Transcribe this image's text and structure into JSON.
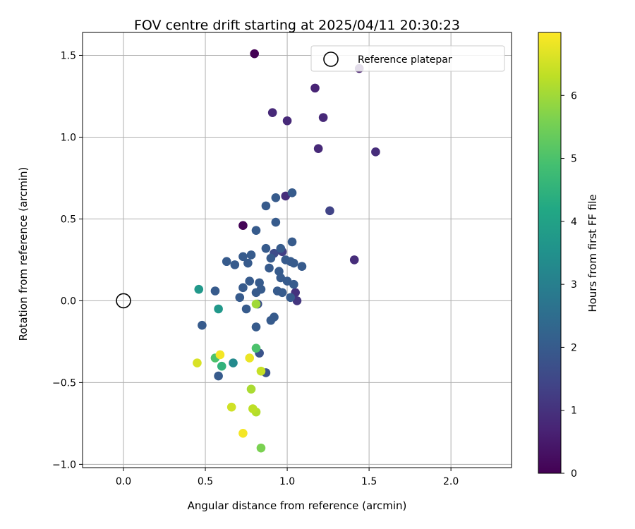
{
  "chart_data": {
    "type": "scatter",
    "title": "FOV centre drift starting at 2025/04/11 20:30:23",
    "xlabel": "Angular distance from reference (arcmin)",
    "ylabel": "Rotation from reference (arcmin)",
    "xlim": [
      -0.25,
      2.37
    ],
    "ylim": [
      -1.02,
      1.64
    ],
    "xticks": [
      "0.0",
      "0.5",
      "1.0",
      "1.5",
      "2.0"
    ],
    "xtick_values": [
      0.0,
      0.5,
      1.0,
      1.5,
      2.0
    ],
    "yticks": [
      "−1.0",
      "−0.5",
      "0.0",
      "0.5",
      "1.0",
      "1.5"
    ],
    "ytick_values": [
      -1.0,
      -0.5,
      0.0,
      0.5,
      1.0,
      1.5
    ],
    "grid": true,
    "legend": {
      "label": "Reference platepar",
      "placement": "top-right"
    },
    "reference_point": {
      "x": 0.0,
      "y": 0.0
    },
    "colorbar": {
      "label": "Hours from first FF file",
      "range": [
        0,
        7
      ],
      "ticks": [
        "0",
        "1",
        "2",
        "3",
        "4",
        "5",
        "6"
      ],
      "tick_values": [
        0,
        1,
        2,
        3,
        4,
        5,
        6
      ],
      "colormap": "viridis"
    },
    "series": [
      {
        "points": [
          {
            "x": 0.8,
            "y": 1.51,
            "c": 0.0
          },
          {
            "x": 0.73,
            "y": 0.46,
            "c": 0.05
          },
          {
            "x": 1.44,
            "y": 1.42,
            "c": 0.6
          },
          {
            "x": 1.17,
            "y": 1.3,
            "c": 0.7
          },
          {
            "x": 0.91,
            "y": 1.15,
            "c": 0.8
          },
          {
            "x": 1.0,
            "y": 1.1,
            "c": 0.8
          },
          {
            "x": 1.22,
            "y": 1.12,
            "c": 0.8
          },
          {
            "x": 1.19,
            "y": 0.93,
            "c": 0.8
          },
          {
            "x": 1.54,
            "y": 0.91,
            "c": 0.9
          },
          {
            "x": 0.99,
            "y": 0.64,
            "c": 0.9
          },
          {
            "x": 1.41,
            "y": 0.25,
            "c": 0.9
          },
          {
            "x": 1.05,
            "y": 0.05,
            "c": 1.0
          },
          {
            "x": 1.06,
            "y": 0.0,
            "c": 1.1
          },
          {
            "x": 1.26,
            "y": 0.55,
            "c": 1.4
          },
          {
            "x": 0.97,
            "y": 0.3,
            "c": 1.3
          },
          {
            "x": 0.92,
            "y": 0.29,
            "c": 1.6
          },
          {
            "x": 0.82,
            "y": -0.02,
            "c": 1.7
          },
          {
            "x": 0.87,
            "y": -0.44,
            "c": 1.8
          },
          {
            "x": 0.83,
            "y": -0.32,
            "c": 1.8
          },
          {
            "x": 1.03,
            "y": 0.66,
            "c": 2.0
          },
          {
            "x": 0.93,
            "y": 0.63,
            "c": 2.0
          },
          {
            "x": 0.87,
            "y": 0.58,
            "c": 2.0
          },
          {
            "x": 0.93,
            "y": 0.48,
            "c": 2.0
          },
          {
            "x": 0.81,
            "y": 0.43,
            "c": 2.0
          },
          {
            "x": 1.03,
            "y": 0.36,
            "c": 2.0
          },
          {
            "x": 0.87,
            "y": 0.32,
            "c": 2.0
          },
          {
            "x": 0.96,
            "y": 0.32,
            "c": 2.0
          },
          {
            "x": 0.78,
            "y": 0.28,
            "c": 2.0
          },
          {
            "x": 0.9,
            "y": 0.26,
            "c": 2.0
          },
          {
            "x": 0.73,
            "y": 0.27,
            "c": 2.0
          },
          {
            "x": 0.63,
            "y": 0.24,
            "c": 2.0
          },
          {
            "x": 0.76,
            "y": 0.23,
            "c": 2.0
          },
          {
            "x": 0.68,
            "y": 0.22,
            "c": 2.0
          },
          {
            "x": 0.99,
            "y": 0.25,
            "c": 2.0
          },
          {
            "x": 1.02,
            "y": 0.24,
            "c": 2.0
          },
          {
            "x": 1.04,
            "y": 0.23,
            "c": 2.0
          },
          {
            "x": 1.09,
            "y": 0.21,
            "c": 2.0
          },
          {
            "x": 0.89,
            "y": 0.2,
            "c": 2.0
          },
          {
            "x": 0.95,
            "y": 0.18,
            "c": 2.0
          },
          {
            "x": 0.96,
            "y": 0.14,
            "c": 2.0
          },
          {
            "x": 0.77,
            "y": 0.12,
            "c": 2.0
          },
          {
            "x": 0.83,
            "y": 0.11,
            "c": 2.0
          },
          {
            "x": 1.0,
            "y": 0.12,
            "c": 2.0
          },
          {
            "x": 1.04,
            "y": 0.1,
            "c": 2.0
          },
          {
            "x": 0.73,
            "y": 0.08,
            "c": 2.0
          },
          {
            "x": 0.84,
            "y": 0.07,
            "c": 2.0
          },
          {
            "x": 0.81,
            "y": 0.05,
            "c": 2.0
          },
          {
            "x": 0.94,
            "y": 0.06,
            "c": 2.0
          },
          {
            "x": 0.97,
            "y": 0.05,
            "c": 2.0
          },
          {
            "x": 0.71,
            "y": 0.02,
            "c": 2.0
          },
          {
            "x": 1.02,
            "y": 0.02,
            "c": 2.0
          },
          {
            "x": 0.56,
            "y": 0.06,
            "c": 2.0
          },
          {
            "x": 0.75,
            "y": -0.05,
            "c": 2.0
          },
          {
            "x": 0.48,
            "y": -0.15,
            "c": 2.0
          },
          {
            "x": 0.81,
            "y": -0.16,
            "c": 2.0
          },
          {
            "x": 0.92,
            "y": -0.1,
            "c": 2.0
          },
          {
            "x": 0.9,
            "y": -0.12,
            "c": 2.0
          },
          {
            "x": 0.58,
            "y": -0.46,
            "c": 2.0
          },
          {
            "x": 0.67,
            "y": -0.38,
            "c": 3.3
          },
          {
            "x": 0.46,
            "y": 0.07,
            "c": 3.7
          },
          {
            "x": 0.58,
            "y": -0.05,
            "c": 3.7
          },
          {
            "x": 0.6,
            "y": -0.4,
            "c": 4.5
          },
          {
            "x": 0.81,
            "y": -0.29,
            "c": 5.0
          },
          {
            "x": 0.56,
            "y": -0.35,
            "c": 5.0
          },
          {
            "x": 0.84,
            "y": -0.9,
            "c": 5.6
          },
          {
            "x": 0.81,
            "y": -0.02,
            "c": 6.0
          },
          {
            "x": 0.78,
            "y": -0.54,
            "c": 6.1
          },
          {
            "x": 0.81,
            "y": -0.68,
            "c": 6.2
          },
          {
            "x": 0.79,
            "y": -0.66,
            "c": 6.3
          },
          {
            "x": 0.84,
            "y": -0.43,
            "c": 6.4
          },
          {
            "x": 0.66,
            "y": -0.65,
            "c": 6.5
          },
          {
            "x": 0.45,
            "y": -0.38,
            "c": 6.6
          },
          {
            "x": 0.77,
            "y": -0.35,
            "c": 6.8
          },
          {
            "x": 0.59,
            "y": -0.33,
            "c": 6.9
          },
          {
            "x": 0.73,
            "y": -0.81,
            "c": 6.9
          }
        ]
      }
    ]
  }
}
